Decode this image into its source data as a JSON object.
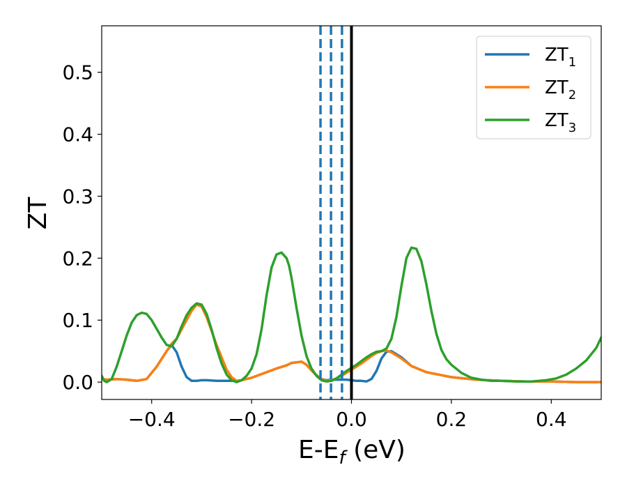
{
  "chart_data": {
    "type": "line",
    "xlabel": "E-E",
    "xlabel_sub": "f",
    "xlabel_unit": " (eV)",
    "ylabel": "ZT",
    "xlim": [
      -0.5,
      0.5
    ],
    "ylim": [
      -0.028,
      0.575
    ],
    "xticks": [
      -0.4,
      -0.2,
      0.0,
      0.2,
      0.4
    ],
    "xtick_labels": [
      "−0.4",
      "−0.2",
      "0.0",
      "0.2",
      "0.4"
    ],
    "yticks": [
      0.0,
      0.1,
      0.2,
      0.3,
      0.4,
      0.5
    ],
    "ytick_labels": [
      "0.0",
      "0.1",
      "0.2",
      "0.3",
      "0.4",
      "0.5"
    ],
    "grid": false,
    "legend_position": "top-right",
    "vlines": [
      {
        "x": -0.062,
        "style": "dashed",
        "color": "#1f77b4"
      },
      {
        "x": -0.041,
        "style": "dashed",
        "color": "#1f77b4"
      },
      {
        "x": -0.019,
        "style": "dashed",
        "color": "#1f77b4"
      },
      {
        "x": 0.0,
        "style": "solid",
        "color": "#000000"
      }
    ],
    "series": [
      {
        "name": "ZT",
        "name_sub": "1",
        "color": "#1f77b4",
        "x": [
          -0.5,
          -0.49,
          -0.47,
          -0.45,
          -0.43,
          -0.41,
          -0.39,
          -0.37,
          -0.36,
          -0.35,
          -0.34,
          -0.33,
          -0.32,
          -0.31,
          -0.3,
          -0.29,
          -0.27,
          -0.26,
          -0.25,
          -0.24,
          -0.23,
          -0.22,
          -0.2,
          -0.18,
          -0.15,
          -0.13,
          -0.12,
          -0.1,
          -0.09,
          -0.08,
          -0.07,
          -0.06,
          -0.05,
          -0.04,
          -0.03,
          -0.02,
          -0.01,
          0.0,
          0.01,
          0.02,
          0.03,
          0.04,
          0.05,
          0.06,
          0.07,
          0.08,
          0.1,
          0.12,
          0.15,
          0.2,
          0.25,
          0.3,
          0.35,
          0.4,
          0.45,
          0.5
        ],
        "y": [
          0.005,
          0.004,
          0.005,
          0.004,
          0.002,
          0.005,
          0.025,
          0.05,
          0.06,
          0.048,
          0.025,
          0.008,
          0.002,
          0.002,
          0.003,
          0.003,
          0.002,
          0.002,
          0.002,
          0.002,
          0.002,
          0.003,
          0.007,
          0.013,
          0.022,
          0.027,
          0.031,
          0.033,
          0.028,
          0.019,
          0.011,
          0.005,
          0.003,
          0.004,
          0.004,
          0.004,
          0.004,
          0.003,
          0.002,
          0.002,
          0.001,
          0.005,
          0.018,
          0.038,
          0.049,
          0.05,
          0.04,
          0.026,
          0.016,
          0.008,
          0.004,
          0.002,
          0.001,
          0.001,
          0.0,
          0.0
        ]
      },
      {
        "name": "ZT",
        "name_sub": "2",
        "color": "#ff7f0e",
        "x": [
          -0.5,
          -0.49,
          -0.47,
          -0.45,
          -0.43,
          -0.41,
          -0.39,
          -0.37,
          -0.36,
          -0.35,
          -0.34,
          -0.33,
          -0.32,
          -0.31,
          -0.3,
          -0.29,
          -0.27,
          -0.25,
          -0.24,
          -0.23,
          -0.22,
          -0.2,
          -0.18,
          -0.15,
          -0.13,
          -0.12,
          -0.1,
          -0.09,
          -0.08,
          -0.07,
          -0.06,
          -0.05,
          -0.04,
          -0.03,
          -0.02,
          -0.01,
          0.0,
          0.01,
          0.02,
          0.03,
          0.04,
          0.05,
          0.06,
          0.07,
          0.08,
          0.1,
          0.12,
          0.15,
          0.2,
          0.25,
          0.3,
          0.35,
          0.4,
          0.45,
          0.5
        ],
        "y": [
          0.005,
          0.004,
          0.005,
          0.004,
          0.002,
          0.005,
          0.025,
          0.05,
          0.062,
          0.07,
          0.085,
          0.1,
          0.115,
          0.125,
          0.122,
          0.105,
          0.06,
          0.02,
          0.008,
          0.002,
          0.003,
          0.007,
          0.013,
          0.022,
          0.027,
          0.031,
          0.033,
          0.028,
          0.019,
          0.011,
          0.005,
          0.002,
          0.003,
          0.006,
          0.01,
          0.015,
          0.02,
          0.025,
          0.03,
          0.036,
          0.042,
          0.047,
          0.05,
          0.051,
          0.048,
          0.038,
          0.026,
          0.016,
          0.008,
          0.004,
          0.002,
          0.001,
          0.001,
          0.0,
          0.0
        ]
      },
      {
        "name": "ZT",
        "name_sub": "3",
        "color": "#2ca02c",
        "x": [
          -0.5,
          -0.495,
          -0.49,
          -0.48,
          -0.47,
          -0.46,
          -0.45,
          -0.44,
          -0.43,
          -0.42,
          -0.41,
          -0.4,
          -0.39,
          -0.38,
          -0.37,
          -0.36,
          -0.35,
          -0.34,
          -0.33,
          -0.32,
          -0.31,
          -0.3,
          -0.29,
          -0.28,
          -0.27,
          -0.26,
          -0.25,
          -0.24,
          -0.23,
          -0.22,
          -0.21,
          -0.2,
          -0.19,
          -0.18,
          -0.17,
          -0.16,
          -0.15,
          -0.14,
          -0.13,
          -0.125,
          -0.12,
          -0.11,
          -0.1,
          -0.09,
          -0.08,
          -0.07,
          -0.06,
          -0.05,
          -0.04,
          -0.03,
          -0.02,
          -0.01,
          0.0,
          0.01,
          0.02,
          0.03,
          0.04,
          0.05,
          0.06,
          0.07,
          0.08,
          0.09,
          0.1,
          0.11,
          0.12,
          0.13,
          0.14,
          0.15,
          0.16,
          0.17,
          0.18,
          0.19,
          0.2,
          0.22,
          0.24,
          0.26,
          0.28,
          0.3,
          0.33,
          0.36,
          0.39,
          0.41,
          0.43,
          0.45,
          0.47,
          0.49,
          0.5
        ],
        "y": [
          0.01,
          0.002,
          0.0,
          0.005,
          0.025,
          0.05,
          0.075,
          0.096,
          0.108,
          0.112,
          0.11,
          0.1,
          0.086,
          0.072,
          0.06,
          0.058,
          0.07,
          0.09,
          0.108,
          0.12,
          0.127,
          0.125,
          0.11,
          0.085,
          0.055,
          0.03,
          0.012,
          0.003,
          0.0,
          0.003,
          0.01,
          0.022,
          0.045,
          0.085,
          0.14,
          0.185,
          0.206,
          0.209,
          0.2,
          0.188,
          0.168,
          0.12,
          0.075,
          0.042,
          0.022,
          0.01,
          0.003,
          0.001,
          0.002,
          0.006,
          0.012,
          0.018,
          0.023,
          0.028,
          0.034,
          0.04,
          0.045,
          0.049,
          0.05,
          0.054,
          0.07,
          0.105,
          0.155,
          0.2,
          0.217,
          0.215,
          0.195,
          0.158,
          0.115,
          0.078,
          0.052,
          0.037,
          0.028,
          0.015,
          0.007,
          0.004,
          0.002,
          0.002,
          0.001,
          0.001,
          0.003,
          0.006,
          0.012,
          0.022,
          0.035,
          0.055,
          0.072
        ]
      }
    ]
  }
}
